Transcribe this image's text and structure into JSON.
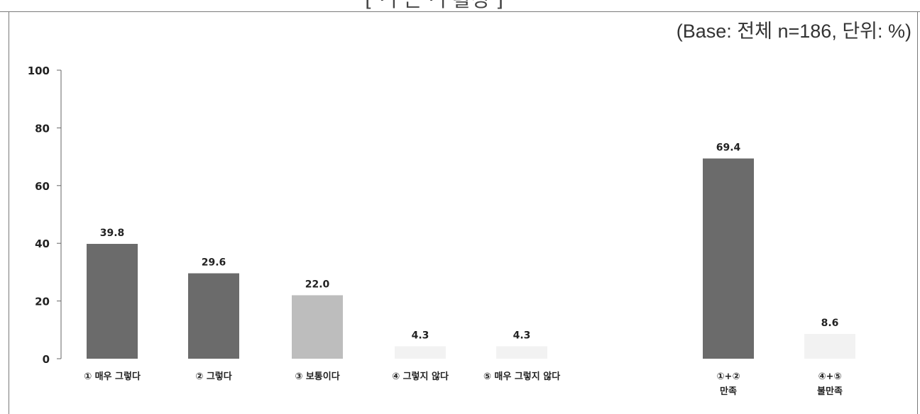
{
  "page": {
    "title_fragment": "[ ·ㅏ근 ·ㅏ활성 ]",
    "base_note": "(Base: 전체 n=186, 단위: %)"
  },
  "chart_data": {
    "type": "bar",
    "title": "",
    "xlabel": "",
    "ylabel": "",
    "ylim": [
      0,
      100
    ],
    "yticks": [
      "0",
      "20",
      "40",
      "60",
      "80",
      "100"
    ],
    "grid": false,
    "legend": "none",
    "categories": [
      [
        "① 매우 그렇다"
      ],
      [
        "② 그렇다"
      ],
      [
        "③ 보통이다"
      ],
      [
        "④ 그렇지 않다"
      ],
      [
        "⑤ 매우 그렇지 않다"
      ],
      [
        "①+②",
        "만족"
      ],
      [
        "④+⑤",
        "불만족"
      ]
    ],
    "values": [
      39.8,
      29.6,
      22.0,
      4.3,
      4.3,
      69.4,
      8.6
    ],
    "value_labels": [
      "39.8",
      "29.6",
      "22.0",
      "4.3",
      "4.3",
      "69.4",
      "8.6"
    ],
    "colors": [
      "#6b6b6b",
      "#6b6b6b",
      "#bdbdbd",
      "#f2f2f2",
      "#f2f2f2",
      "#6b6b6b",
      "#f2f2f2"
    ]
  }
}
